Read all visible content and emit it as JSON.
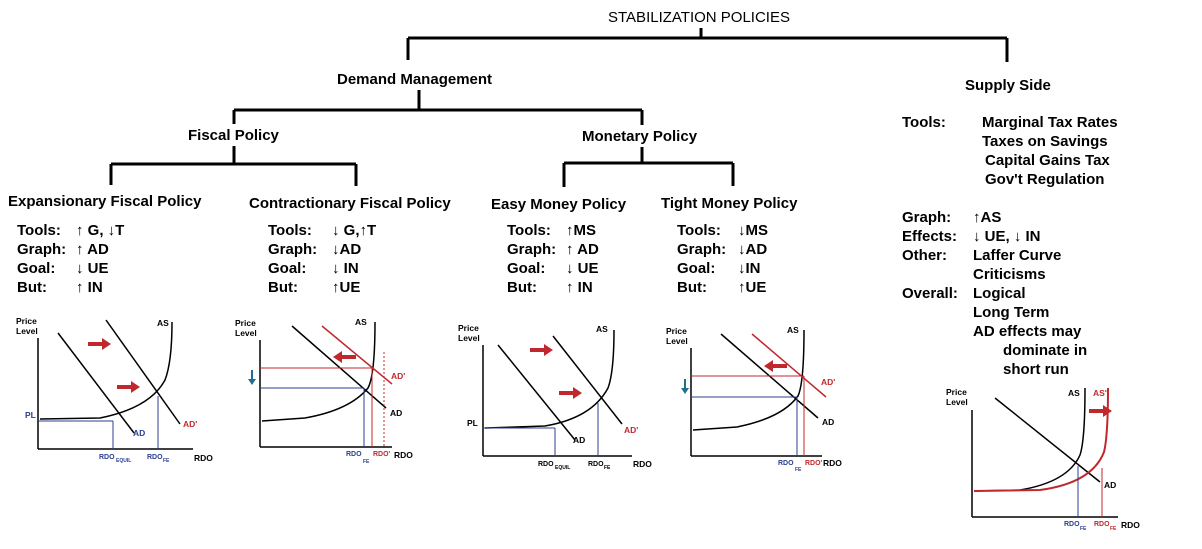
{
  "title": "STABILIZATION POLICIES",
  "demand": {
    "heading": "Demand Management",
    "fiscal": {
      "heading": "Fiscal Policy",
      "expansionary": {
        "heading": "Expansionary Fiscal Policy",
        "rows": [
          {
            "key": "Tools:",
            "val": "↑ G, ↓T"
          },
          {
            "key": "Graph:",
            "val": "↑ AD"
          },
          {
            "key": "Goal:",
            "val": "↓ UE"
          },
          {
            "key": "But:",
            "val": "↑ IN"
          }
        ]
      },
      "contractionary": {
        "heading": "Contractionary Fiscal Policy",
        "rows": [
          {
            "key": "Tools:",
            "val": "↓ G,↑T"
          },
          {
            "key": "Graph:",
            "val": "↓AD"
          },
          {
            "key": "Goal:",
            "val": "↓ IN"
          },
          {
            "key": "But:",
            "val": "↑UE"
          }
        ]
      }
    },
    "monetary": {
      "heading": "Monetary Policy",
      "easy": {
        "heading": "Easy Money Policy",
        "rows": [
          {
            "key": "Tools:",
            "val": "↑MS"
          },
          {
            "key": "Graph:",
            "val": "↑ AD"
          },
          {
            "key": "Goal:",
            "val": "↓ UE"
          },
          {
            "key": "But:",
            "val": "↑ IN"
          }
        ]
      },
      "tight": {
        "heading": "Tight Money Policy",
        "rows": [
          {
            "key": "Tools:",
            "val": "↓MS"
          },
          {
            "key": "Graph:",
            "val": "↓AD"
          },
          {
            "key": "Goal:",
            "val": "↓IN"
          },
          {
            "key": "But:",
            "val": "↑UE"
          }
        ]
      }
    }
  },
  "supply": {
    "heading": "Supply Side",
    "tools_key": "Tools:",
    "tools": [
      "Marginal Tax Rates",
      "Taxes on Savings",
      "Capital Gains Tax",
      "Gov't Regulation"
    ],
    "graph_key": "Graph:",
    "graph_val": "↑AS",
    "effects_key": "Effects:",
    "effects_val": "↓ UE,  ↓ IN",
    "other_key": "Other:",
    "other_val_1": "Laffer Curve",
    "other_val_2": "Criticisms",
    "overall_key": "Overall:",
    "overall_val_1": "Logical",
    "overall_val_2": "Long Term",
    "overall_val_3": "AD effects may",
    "overall_val_4": "dominate in",
    "overall_val_5": "short run"
  },
  "graph_labels": {
    "price": "Price",
    "level": "Level",
    "rdo": "RDO",
    "as": "AS",
    "as_prime": "AS'",
    "ad": "AD",
    "ad_prime": "AD'",
    "pl": "PL",
    "rdo_equil": "RDO",
    "equil_sub": "EQUIL",
    "rdo_fe": "RDO",
    "fe_sub": "FE",
    "rdo_fe_prime": "RDO'"
  },
  "colors": {
    "red": "#c0282d",
    "blue": "#2b3f8f",
    "teal": "#1f6f8f",
    "black": "#000000"
  }
}
